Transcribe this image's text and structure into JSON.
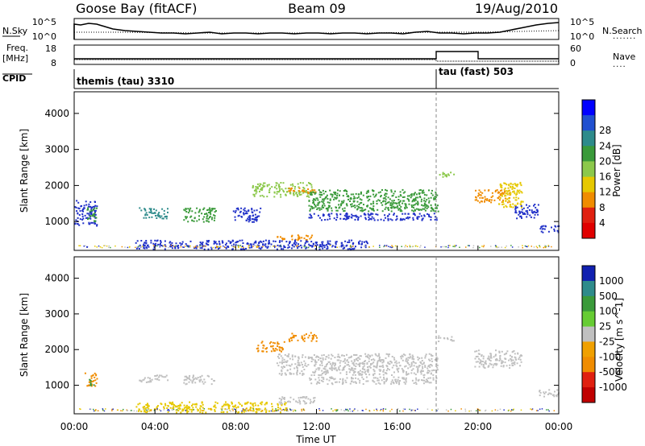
{
  "header": {
    "station": "Goose Bay (fitACF)",
    "beam": "Beam 09",
    "date": "19/Aug/2010"
  },
  "summary_panels": {
    "nsky_label": "N.Sky",
    "nsky_ticks": [
      "10^5",
      "10^0"
    ],
    "nsearch_label": "N.Search",
    "nsearch_ticks": [
      "10^5",
      "10^0"
    ],
    "freq_label_line1": "Freq.",
    "freq_label_line2": "[MHz]",
    "freq_ticks": [
      "18",
      "8"
    ],
    "nave_label": "Nave",
    "nave_ticks": [
      "60",
      "0"
    ],
    "cpid_label": "CPID",
    "cpid_segments": [
      {
        "label": "themis (tau) 3310",
        "start_hour": 0
      },
      {
        "label": "tau (fast) 503",
        "start_hour": 18
      }
    ]
  },
  "colors": {
    "blue": "#2030c8",
    "teal": "#2e8b8b",
    "green": "#3a9a3a",
    "lime": "#8cc84b",
    "yellow": "#e6c800",
    "orange": "#f08c00",
    "red": "#e02010",
    "darkred": "#c00000",
    "gray": "#c0c0c0",
    "darkblue": "#1020b0",
    "ltgreen": "#66cc33"
  },
  "chart_data": [
    {
      "type": "heatmap",
      "title": "",
      "xlabel": "Time UT",
      "ylabel": "Slant Range [km]",
      "xlim": [
        0,
        24
      ],
      "ylim": [
        200,
        4600
      ],
      "x_ticks": [
        "00:00",
        "04:00",
        "08:00",
        "12:00",
        "16:00",
        "20:00",
        "00:00"
      ],
      "y_ticks": [
        "1000",
        "2000",
        "3000",
        "4000"
      ],
      "colorbar": {
        "label": "Power [dB]",
        "ticks": [
          "4",
          "8",
          "12",
          "16",
          "20",
          "24",
          "28"
        ],
        "colors": [
          "#0000ff",
          "#2050d0",
          "#2e8b8b",
          "#3a9a3a",
          "#8cc84b",
          "#e6c800",
          "#f08c00",
          "#e02010",
          "#e00000"
        ]
      },
      "regions": [
        {
          "t0": 0.0,
          "t1": 1.1,
          "r0": 900,
          "r1": 1600,
          "color": "blue"
        },
        {
          "t0": 0.6,
          "t1": 1.1,
          "r0": 1000,
          "r1": 1400,
          "color": "green"
        },
        {
          "t0": 3.2,
          "t1": 4.6,
          "r0": 1100,
          "r1": 1400,
          "color": "teal"
        },
        {
          "t0": 5.4,
          "t1": 7.0,
          "r0": 1000,
          "r1": 1400,
          "color": "green"
        },
        {
          "t0": 7.8,
          "t1": 9.2,
          "r0": 1000,
          "r1": 1400,
          "color": "blue"
        },
        {
          "t0": 8.8,
          "t1": 11.8,
          "r0": 1700,
          "r1": 2100,
          "color": "lime"
        },
        {
          "t0": 10.6,
          "t1": 12.0,
          "r0": 1800,
          "r1": 1950,
          "color": "orange"
        },
        {
          "t0": 11.6,
          "t1": 18.0,
          "r0": 1300,
          "r1": 1900,
          "color": "green"
        },
        {
          "t0": 11.6,
          "t1": 18.0,
          "r0": 1050,
          "r1": 1250,
          "color": "blue"
        },
        {
          "t0": 10.0,
          "t1": 11.8,
          "r0": 500,
          "r1": 650,
          "color": "orange"
        },
        {
          "t0": 3.0,
          "t1": 14.5,
          "r0": 250,
          "r1": 500,
          "color": "blue"
        },
        {
          "t0": 18.0,
          "t1": 18.8,
          "r0": 2250,
          "r1": 2400,
          "color": "lime"
        },
        {
          "t0": 19.8,
          "t1": 21.6,
          "r0": 1550,
          "r1": 1900,
          "color": "orange"
        },
        {
          "t0": 21.0,
          "t1": 22.2,
          "r0": 1400,
          "r1": 2100,
          "color": "yellow"
        },
        {
          "t0": 21.8,
          "t1": 23.0,
          "r0": 1100,
          "r1": 1500,
          "color": "blue"
        },
        {
          "t0": 23.0,
          "t1": 24.0,
          "r0": 700,
          "r1": 900,
          "color": "blue"
        }
      ]
    },
    {
      "type": "heatmap",
      "title": "",
      "xlabel": "Time UT",
      "ylabel": "Slant Range [km]",
      "xlim": [
        0,
        24
      ],
      "ylim": [
        200,
        4600
      ],
      "x_ticks": [
        "00:00",
        "04:00",
        "08:00",
        "12:00",
        "16:00",
        "20:00",
        "00:00"
      ],
      "y_ticks": [
        "1000",
        "2000",
        "3000",
        "4000"
      ],
      "colorbar": {
        "label": "Velocity [m s^-1]",
        "ticks": [
          "1000",
          "500",
          "100",
          "25",
          "-25",
          "-100",
          "-500",
          "-1000"
        ],
        "colors": [
          "#1020b0",
          "#2e8b8b",
          "#3a9a3a",
          "#66cc33",
          "#c0c0c0",
          "#f0a000",
          "#f08c00",
          "#e02010",
          "#c00000"
        ]
      },
      "regions": [
        {
          "t0": 0.5,
          "t1": 1.1,
          "r0": 1000,
          "r1": 1400,
          "color": "orange"
        },
        {
          "t0": 0.7,
          "t1": 1.0,
          "r0": 1000,
          "r1": 1200,
          "color": "green"
        },
        {
          "t0": 3.2,
          "t1": 4.6,
          "r0": 1100,
          "r1": 1300,
          "color": "gray"
        },
        {
          "t0": 5.4,
          "t1": 7.0,
          "r0": 1050,
          "r1": 1300,
          "color": "gray"
        },
        {
          "t0": 9.0,
          "t1": 10.4,
          "r0": 1950,
          "r1": 2250,
          "color": "orange"
        },
        {
          "t0": 10.6,
          "t1": 12.0,
          "r0": 2250,
          "r1": 2500,
          "color": "orange"
        },
        {
          "t0": 10.0,
          "t1": 18.0,
          "r0": 1300,
          "r1": 1900,
          "color": "gray"
        },
        {
          "t0": 11.6,
          "t1": 18.0,
          "r0": 1050,
          "r1": 1250,
          "color": "gray"
        },
        {
          "t0": 10.0,
          "t1": 12.0,
          "r0": 500,
          "r1": 700,
          "color": "gray"
        },
        {
          "t0": 3.0,
          "t1": 10.5,
          "r0": 250,
          "r1": 550,
          "color": "yellow"
        },
        {
          "t0": 18.0,
          "t1": 18.8,
          "r0": 2250,
          "r1": 2400,
          "color": "gray"
        },
        {
          "t0": 19.8,
          "t1": 22.2,
          "r0": 1500,
          "r1": 2000,
          "color": "gray"
        },
        {
          "t0": 23.0,
          "t1": 24.0,
          "r0": 700,
          "r1": 900,
          "color": "gray"
        }
      ]
    }
  ]
}
